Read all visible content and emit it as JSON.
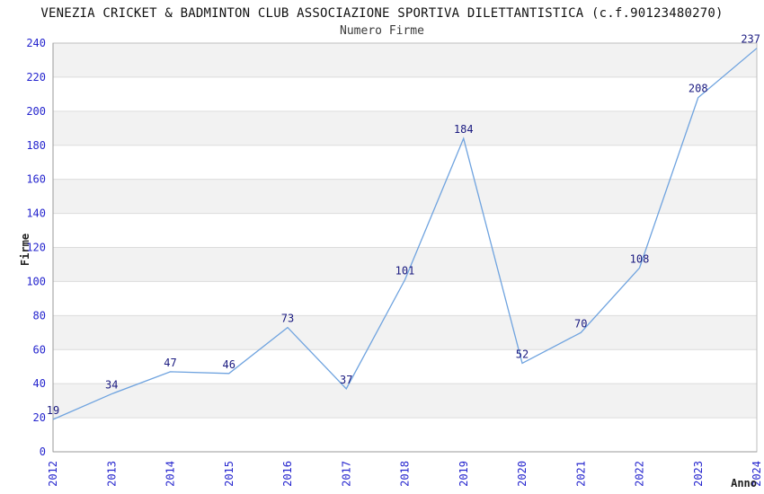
{
  "chart_data": {
    "type": "line",
    "title": "VENEZIA CRICKET & BADMINTON CLUB ASSOCIAZIONE SPORTIVA DILETTANTISTICA (c.f.90123480270)",
    "subtitle": "Numero Firme",
    "xlabel": "Anno",
    "ylabel": "Firme",
    "x": [
      "2012",
      "2013",
      "2014",
      "2015",
      "2016",
      "2017",
      "2018",
      "2019",
      "2020",
      "2021",
      "2022",
      "2023",
      "2024"
    ],
    "values": [
      19,
      34,
      47,
      46,
      73,
      37,
      101,
      184,
      52,
      70,
      108,
      208,
      237
    ],
    "ylim": [
      0,
      240
    ],
    "ytick_step": 20,
    "grid": "horizontal-only",
    "legend": "none",
    "bands": "alternating horizontal 20-unit bands, gray on 20-40, 60-80, 100-120, 140-160, 180-200, 220-240",
    "point_labels_shown": true,
    "colors": {
      "line": "#6FA3DF",
      "tick_labels": "#2525CE",
      "point_labels": "#1A1A80",
      "band": "#F2F2F2",
      "gridline": "#DCDCDC",
      "plot_border": "#BDBDBD",
      "axis": "#999999",
      "title": "#111111",
      "subtitle": "#3A3A3A",
      "axis_titles": "#222222"
    }
  }
}
